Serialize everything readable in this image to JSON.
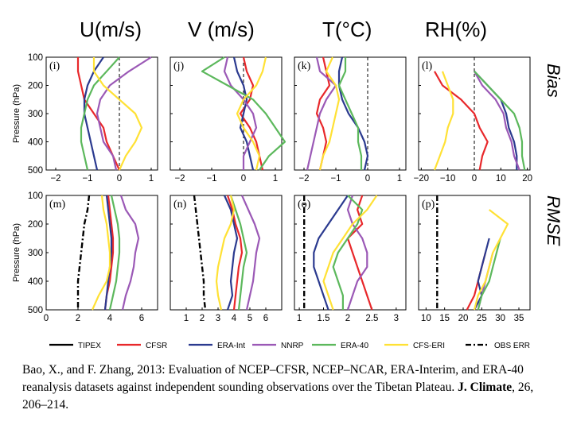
{
  "column_titles": [
    "U(m/s)",
    "V (m/s)",
    "T(°C)",
    "RH(%)"
  ],
  "row_labels": [
    "Bias",
    "RMSE"
  ],
  "colors": {
    "TIPEX": "#000000",
    "CFSR": "#e8282b",
    "ERA-Int": "#2b3a8f",
    "NNRP": "#9b59b6",
    "ERA-40": "#5cb85c",
    "CFS-ERI": "#ffe135",
    "OBS ERR": "#000000"
  },
  "legend": [
    {
      "name": "TIPEX",
      "style": "solid"
    },
    {
      "name": "CFSR",
      "style": "solid"
    },
    {
      "name": "ERA-Int",
      "style": "solid"
    },
    {
      "name": "NNRP",
      "style": "solid"
    },
    {
      "name": "ERA-40",
      "style": "solid"
    },
    {
      "name": "CFS-ERI",
      "style": "solid"
    },
    {
      "name": "OBS ERR",
      "style": "dashdot"
    }
  ],
  "chart_data": [
    {
      "panel": "(i)",
      "type": "line",
      "ylabel": "Pressure (hPa)",
      "yticks": [
        100,
        200,
        300,
        400,
        500
      ],
      "xlim": [
        -2.3,
        1.2
      ],
      "xticks": [
        -2,
        -1,
        0,
        1
      ],
      "ref": {
        "x": 0,
        "style": "dashed"
      },
      "levels": [
        100,
        150,
        200,
        250,
        300,
        350,
        400,
        450,
        500
      ],
      "series": [
        {
          "name": "CFSR",
          "values": [
            -1.3,
            -1.3,
            -1.2,
            -1.1,
            -0.8,
            -0.5,
            -0.4,
            -0.2,
            0.0
          ]
        },
        {
          "name": "ERA-Int",
          "values": [
            -0.5,
            -0.8,
            -1.0,
            -1.1,
            -1.1,
            -1.0,
            -0.9,
            -0.8,
            -0.7
          ]
        },
        {
          "name": "NNRP",
          "values": [
            1.0,
            0.3,
            -0.3,
            -0.6,
            -0.7,
            -0.6,
            -0.5,
            -0.2,
            -0.1
          ]
        },
        {
          "name": "ERA-40",
          "values": [
            0.0,
            -0.4,
            -0.8,
            -1.0,
            -1.1,
            -1.2,
            -1.2,
            -1.1,
            -1.0
          ]
        },
        {
          "name": "CFS-ERI",
          "values": [
            -0.8,
            -0.8,
            -0.5,
            0.0,
            0.5,
            0.7,
            0.5,
            0.2,
            0.0
          ]
        }
      ]
    },
    {
      "panel": "(j)",
      "type": "line",
      "yticks": [
        100,
        200,
        300,
        400,
        500
      ],
      "xlim": [
        -2.3,
        1.2
      ],
      "xticks": [
        -2,
        -1,
        0,
        1
      ],
      "ref": {
        "x": 0,
        "style": "dashed"
      },
      "levels": [
        100,
        150,
        200,
        250,
        300,
        350,
        400,
        450,
        500
      ],
      "series": [
        {
          "name": "CFSR",
          "values": [
            0.0,
            0.1,
            0.3,
            0.2,
            -0.1,
            0.2,
            0.4,
            0.5,
            0.6
          ]
        },
        {
          "name": "ERA-Int",
          "values": [
            -0.3,
            -0.2,
            0.0,
            0.1,
            0.0,
            -0.1,
            0.1,
            0.2,
            0.3
          ]
        },
        {
          "name": "NNRP",
          "values": [
            -0.5,
            -0.6,
            -0.4,
            0.0,
            0.3,
            0.4,
            0.2,
            0.0,
            0.0
          ]
        },
        {
          "name": "ERA-40",
          "values": [
            -0.6,
            -1.3,
            -0.5,
            0.3,
            0.7,
            1.0,
            1.3,
            0.8,
            0.5
          ]
        },
        {
          "name": "CFS-ERI",
          "values": [
            0.7,
            0.6,
            0.4,
            0.0,
            -0.2,
            0.0,
            0.3,
            0.5,
            0.4
          ]
        }
      ]
    },
    {
      "panel": "(k)",
      "type": "line",
      "yticks": [
        100,
        200,
        300,
        400,
        500
      ],
      "xlim": [
        -2.3,
        1.2
      ],
      "xticks": [
        -2,
        -1,
        0,
        1
      ],
      "ref": {
        "x": 0,
        "style": "dashed"
      },
      "levels": [
        100,
        150,
        200,
        250,
        300,
        350,
        400,
        450,
        500
      ],
      "series": [
        {
          "name": "CFSR",
          "values": [
            -1.4,
            -1.3,
            -1.2,
            -1.5,
            -1.6,
            -1.4,
            -1.3,
            -1.4,
            -1.5
          ]
        },
        {
          "name": "ERA-Int",
          "values": [
            -0.8,
            -0.9,
            -0.9,
            -0.8,
            -0.6,
            -0.3,
            -0.1,
            0.0,
            -0.1
          ]
        },
        {
          "name": "NNRP",
          "values": [
            -1.6,
            -1.5,
            -1.0,
            -1.3,
            -1.5,
            -1.6,
            -1.7,
            -1.8,
            -1.9
          ]
        },
        {
          "name": "ERA-40",
          "values": [
            -0.7,
            -0.7,
            -0.9,
            -0.7,
            -0.5,
            -0.3,
            -0.3,
            -0.2,
            -0.2
          ]
        },
        {
          "name": "CFS-ERI",
          "values": [
            -1.1,
            -1.3,
            -1.0,
            -0.9,
            -1.0,
            -1.1,
            -1.2,
            -1.4,
            -1.5
          ]
        }
      ]
    },
    {
      "panel": "(l)",
      "type": "line",
      "yticks": [
        100,
        200,
        300,
        400,
        500
      ],
      "xlim": [
        -21,
        21
      ],
      "xticks": [
        -20,
        -10,
        0,
        10,
        20
      ],
      "ref": {
        "x": 0,
        "style": "dashed"
      },
      "levels": [
        150,
        200,
        250,
        300,
        350,
        400,
        450,
        500
      ],
      "series": [
        {
          "name": "CFSR",
          "values": [
            -15,
            -12,
            -5,
            0,
            2,
            5,
            3,
            2
          ]
        },
        {
          "name": "ERA-Int",
          "values": [
            0,
            5,
            10,
            12,
            13,
            15,
            16,
            16
          ]
        },
        {
          "name": "NNRP",
          "values": [
            0,
            3,
            8,
            11,
            12,
            14,
            15,
            17
          ]
        },
        {
          "name": "ERA-40",
          "values": [
            0,
            5,
            10,
            15,
            17,
            18,
            18,
            19
          ]
        },
        {
          "name": "CFS-ERI",
          "values": [
            -12,
            -10,
            -8,
            -8,
            -10,
            -11,
            -13,
            -15
          ]
        }
      ]
    },
    {
      "panel": "(m)",
      "type": "line",
      "ylabel": "Pressure (hPa)",
      "yticks": [
        100,
        200,
        300,
        400,
        500
      ],
      "xlim": [
        0,
        7
      ],
      "xticks": [
        0,
        2,
        4,
        6
      ],
      "levels": [
        100,
        150,
        200,
        250,
        300,
        350,
        400,
        450,
        500
      ],
      "series": [
        {
          "name": "OBS ERR",
          "style": "dashdot",
          "values": [
            2.7,
            2.6,
            2.4,
            2.3,
            2.2,
            2.1,
            2.0,
            2.0,
            2.0
          ]
        },
        {
          "name": "CFSR",
          "values": [
            3.9,
            4.0,
            4.1,
            4.2,
            4.2,
            4.1,
            4.0,
            3.8,
            3.7
          ]
        },
        {
          "name": "ERA-Int",
          "values": [
            3.8,
            3.9,
            4.0,
            4.1,
            4.1,
            4.0,
            3.9,
            3.8,
            3.7
          ]
        },
        {
          "name": "NNRP",
          "values": [
            4.7,
            5.0,
            5.6,
            5.8,
            5.6,
            5.5,
            5.3,
            5.0,
            4.8
          ]
        },
        {
          "name": "ERA-40",
          "values": [
            4.1,
            4.3,
            4.5,
            4.6,
            4.6,
            4.5,
            4.4,
            4.2,
            4.0
          ]
        },
        {
          "name": "CFS-ERI",
          "values": [
            3.5,
            3.6,
            3.8,
            3.9,
            4.0,
            4.0,
            3.8,
            3.3,
            2.9
          ]
        }
      ]
    },
    {
      "panel": "(n)",
      "type": "line",
      "yticks": [
        100,
        200,
        300,
        400,
        500
      ],
      "xlim": [
        0,
        7
      ],
      "xticks": [
        1,
        2,
        3,
        4,
        5,
        6
      ],
      "levels": [
        100,
        150,
        200,
        250,
        300,
        350,
        400,
        450,
        500
      ],
      "series": [
        {
          "name": "OBS ERR",
          "style": "dashdot",
          "values": [
            1.5,
            1.6,
            1.7,
            1.8,
            1.9,
            2.0,
            2.1,
            2.1,
            2.2
          ]
        },
        {
          "name": "CFSR",
          "values": [
            3.6,
            3.9,
            4.1,
            4.4,
            4.5,
            4.3,
            4.2,
            4.1,
            4.0
          ]
        },
        {
          "name": "ERA-Int",
          "values": [
            3.4,
            3.8,
            4.0,
            4.2,
            4.0,
            3.9,
            3.8,
            3.9,
            3.6
          ]
        },
        {
          "name": "NNRP",
          "values": [
            4.5,
            4.9,
            5.3,
            5.6,
            5.4,
            5.3,
            5.2,
            5.0,
            4.8
          ]
        },
        {
          "name": "ERA-40",
          "values": [
            3.8,
            4.1,
            4.4,
            4.6,
            4.8,
            4.6,
            4.5,
            4.4,
            4.3
          ]
        },
        {
          "name": "CFS-ERI",
          "values": [
            3.8,
            4.0,
            3.8,
            3.4,
            3.2,
            3.0,
            2.9,
            3.0,
            3.2
          ]
        }
      ]
    },
    {
      "panel": "(o)",
      "type": "line",
      "yticks": [
        100,
        200,
        300,
        400,
        500
      ],
      "xlim": [
        0.9,
        3.2
      ],
      "xticks": [
        1,
        1.5,
        2,
        2.5,
        3
      ],
      "levels": [
        100,
        150,
        200,
        250,
        300,
        350,
        400,
        450,
        500
      ],
      "series": [
        {
          "name": "OBS ERR",
          "style": "dashdot",
          "values": [
            1.1,
            1.1,
            1.1,
            1.1,
            1.1,
            1.1,
            1.1,
            1.1,
            1.1
          ]
        },
        {
          "name": "CFSR",
          "values": [
            2.3,
            2.2,
            2.3,
            2.0,
            2.1,
            2.2,
            2.3,
            2.4,
            2.5
          ]
        },
        {
          "name": "ERA-Int",
          "values": [
            2.0,
            1.8,
            1.6,
            1.4,
            1.3,
            1.3,
            1.4,
            1.5,
            1.6
          ]
        },
        {
          "name": "NNRP",
          "values": [
            2.1,
            2.0,
            2.1,
            2.3,
            2.4,
            2.4,
            2.2,
            2.1,
            2.0
          ]
        },
        {
          "name": "ERA-40",
          "values": [
            2.0,
            2.3,
            2.2,
            2.0,
            1.8,
            1.7,
            1.8,
            1.9,
            1.9
          ]
        },
        {
          "name": "CFS-ERI",
          "values": [
            2.6,
            2.4,
            2.1,
            1.9,
            1.7,
            1.6,
            1.5,
            1.6,
            1.7
          ]
        }
      ]
    },
    {
      "panel": "(p)",
      "type": "line",
      "yticks": [
        100,
        200,
        300,
        400,
        500
      ],
      "xlim": [
        8,
        38
      ],
      "xticks": [
        10,
        15,
        20,
        25,
        30,
        35
      ],
      "levels": [
        100,
        150,
        200,
        250,
        300,
        350,
        400,
        450,
        500
      ],
      "series": [
        {
          "name": "OBS ERR",
          "style": "dashdot",
          "values": [
            13,
            13,
            13,
            13,
            13,
            13,
            13,
            13,
            13
          ]
        },
        {
          "name": "CFSR",
          "values": [
            null,
            null,
            null,
            null,
            26,
            25,
            24,
            23,
            21
          ]
        },
        {
          "name": "ERA-Int",
          "values": [
            null,
            null,
            null,
            27,
            26,
            25,
            24,
            25,
            23
          ]
        },
        {
          "name": "NNRP",
          "values": [
            null,
            null,
            null,
            null,
            28,
            27,
            26,
            25,
            24
          ]
        },
        {
          "name": "ERA-40",
          "values": [
            null,
            null,
            null,
            30,
            29,
            28,
            27,
            25,
            24
          ]
        },
        {
          "name": "CFS-ERI",
          "values": [
            null,
            27,
            32,
            30,
            28,
            27,
            26,
            24,
            23
          ]
        }
      ]
    }
  ],
  "caption": {
    "authors": "Bao, X., and F. Zhang, 2013: Evaluation of NCEP–CFSR, NCEP–NCAR, ERA-Interim, and ERA-40 reanalysis datasets against independent sounding observations over the Tibetan Plateau. ",
    "journal": "J. Climate",
    "rest": ", 26, 206–214."
  }
}
